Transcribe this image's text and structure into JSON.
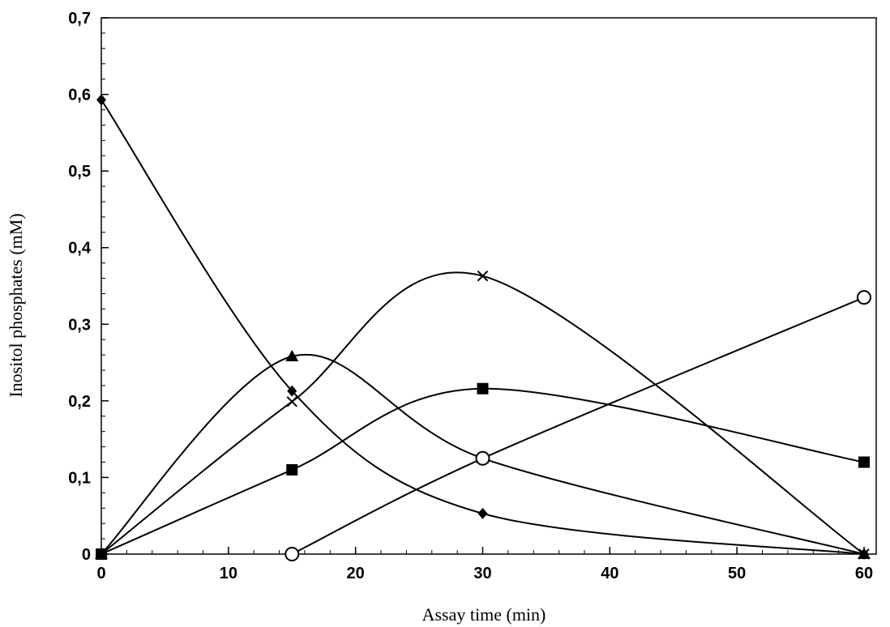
{
  "chart_data": {
    "type": "line",
    "title": "",
    "xlabel": "Assay time (min)",
    "ylabel": "Inositol phosphates (mM)",
    "xlim": [
      0,
      60
    ],
    "ylim": [
      0,
      0.7
    ],
    "xticks": [
      0,
      10,
      20,
      30,
      40,
      50,
      60
    ],
    "xtick_labels": [
      "0",
      "10",
      "20",
      "30",
      "40",
      "50",
      "60"
    ],
    "yticks": [
      0,
      0.1,
      0.2,
      0.3,
      0.4,
      0.5,
      0.6,
      0.7
    ],
    "ytick_labels": [
      "0",
      "0,1",
      "0,2",
      "0,3",
      "0,4",
      "0,5",
      "0,6",
      "0,7"
    ],
    "grid": false,
    "legend": false,
    "x": [
      0,
      15,
      30,
      60
    ],
    "series": [
      {
        "name": "diamond-series",
        "marker": "diamond",
        "values": [
          0.593,
          0.213,
          0.053,
          0.0
        ]
      },
      {
        "name": "triangle-series",
        "marker": "triangle",
        "values": [
          0.0,
          0.258,
          0.125,
          0.0
        ]
      },
      {
        "name": "cross-series",
        "marker": "cross",
        "values": [
          0.0,
          0.199,
          0.363,
          0.0
        ]
      },
      {
        "name": "square-series",
        "marker": "square",
        "values": [
          0.0,
          0.11,
          0.216,
          0.12
        ]
      },
      {
        "name": "circle-series",
        "marker": "circle",
        "values": [
          null,
          0.0,
          0.125,
          0.335
        ]
      }
    ]
  }
}
